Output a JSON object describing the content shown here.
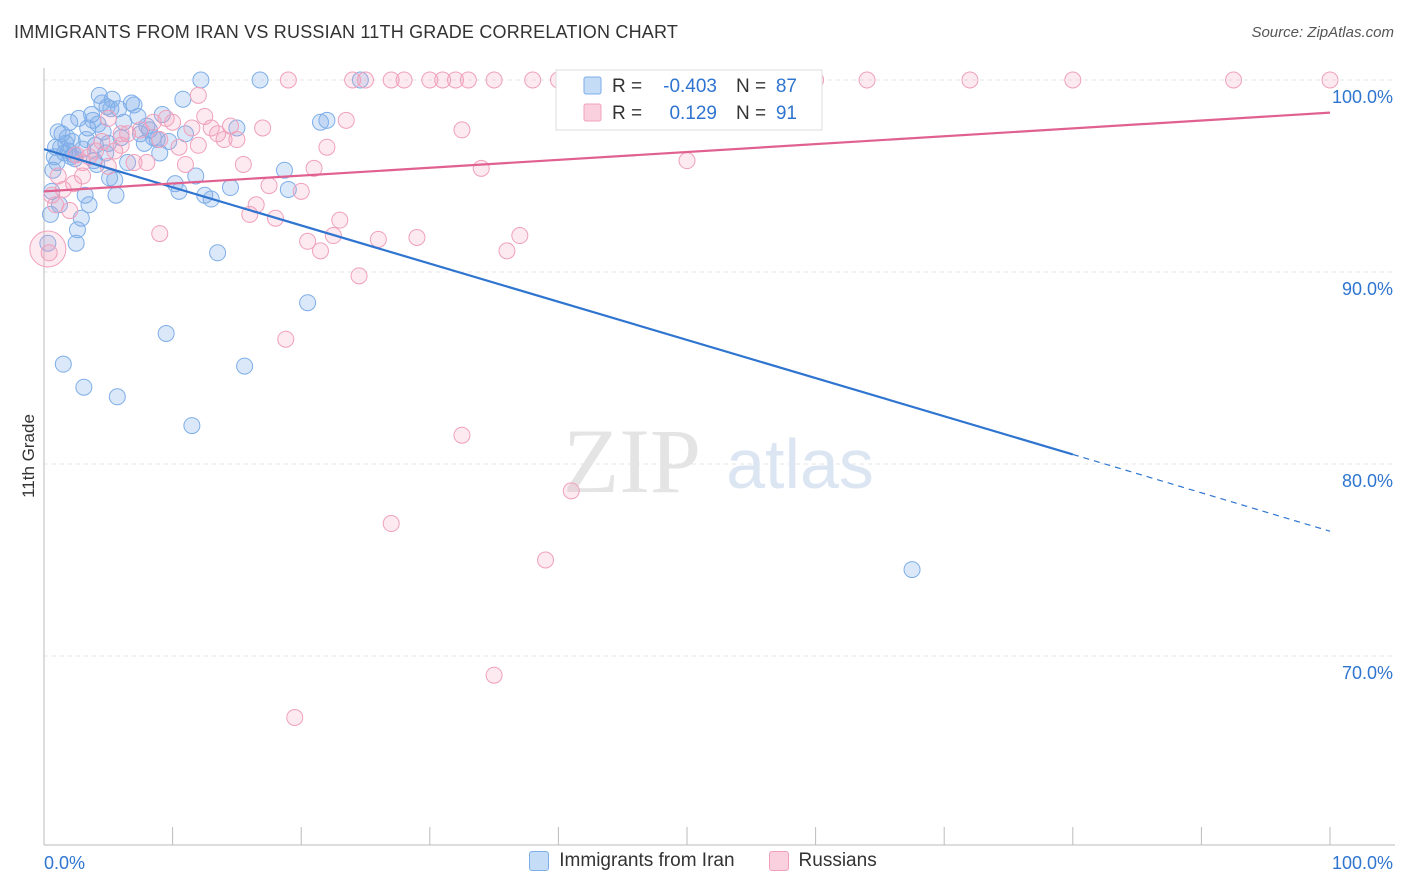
{
  "title": "IMMIGRANTS FROM IRAN VS RUSSIAN 11TH GRADE CORRELATION CHART",
  "source": "Source: ZipAtlas.com",
  "watermark": {
    "zip": "ZIP",
    "atlas": "atlas"
  },
  "chart_data": {
    "type": "scatter",
    "xlabel": "",
    "ylabel": "11th Grade",
    "xlim": [
      0,
      100
    ],
    "ylim": [
      60,
      100
    ],
    "x_tick_labels": [
      "0.0%",
      "100.0%"
    ],
    "y_ticks": [
      100,
      90,
      80,
      70
    ],
    "y_tick_labels": [
      "100.0%",
      "90.0%",
      "80.0%",
      "70.0%"
    ],
    "grid": true,
    "legend_position": "top-center",
    "legend": {
      "rows": [
        {
          "r_label": "R =",
          "r_value": "-0.403",
          "n_label": "N =",
          "n_value": "87"
        },
        {
          "r_label": "R =",
          "r_value": "0.129",
          "n_label": "N =",
          "n_value": "91"
        }
      ]
    },
    "series": [
      {
        "name": "Immigrants from Iran",
        "color": "#7eaee8",
        "line_color": "#2f75d0",
        "trend": {
          "x0": 0,
          "y0": 96.4,
          "x1": 80,
          "y1": 80.5,
          "dashed_to_x": 100,
          "dashed_to_y": 76.5
        },
        "points": [
          [
            0.3,
            91.5
          ],
          [
            0.5,
            93.0
          ],
          [
            0.6,
            94.2
          ],
          [
            0.7,
            95.3
          ],
          [
            0.8,
            96.0
          ],
          [
            1.0,
            95.7
          ],
          [
            1.2,
            93.5
          ],
          [
            1.3,
            96.5
          ],
          [
            1.4,
            97.2
          ],
          [
            1.6,
            96.2
          ],
          [
            1.8,
            97.0
          ],
          [
            1.9,
            96.3
          ],
          [
            2.0,
            97.8
          ],
          [
            2.2,
            96.8
          ],
          [
            2.4,
            95.9
          ],
          [
            2.5,
            91.5
          ],
          [
            2.6,
            92.2
          ],
          [
            2.7,
            98.0
          ],
          [
            2.9,
            92.8
          ],
          [
            3.0,
            96.4
          ],
          [
            3.2,
            94.0
          ],
          [
            3.4,
            97.5
          ],
          [
            3.5,
            93.5
          ],
          [
            3.7,
            98.2
          ],
          [
            3.9,
            95.8
          ],
          [
            4.0,
            96.6
          ],
          [
            4.2,
            97.7
          ],
          [
            4.3,
            99.2
          ],
          [
            4.5,
            98.8
          ],
          [
            4.6,
            97.3
          ],
          [
            4.8,
            96.2
          ],
          [
            4.9,
            98.6
          ],
          [
            5.0,
            96.7
          ],
          [
            5.2,
            98.5
          ],
          [
            5.3,
            99.0
          ],
          [
            5.5,
            94.8
          ],
          [
            5.6,
            94.0
          ],
          [
            5.8,
            98.5
          ],
          [
            6.0,
            97.0
          ],
          [
            6.5,
            95.7
          ],
          [
            6.8,
            98.8
          ],
          [
            7.0,
            98.7
          ],
          [
            7.5,
            97.2
          ],
          [
            7.8,
            96.7
          ],
          [
            8.2,
            97.4
          ],
          [
            8.5,
            97.0
          ],
          [
            8.8,
            96.9
          ],
          [
            9.2,
            98.2
          ],
          [
            9.7,
            96.8
          ],
          [
            10.2,
            94.6
          ],
          [
            10.5,
            94.2
          ],
          [
            11.0,
            97.2
          ],
          [
            11.8,
            95.0
          ],
          [
            12.5,
            94.0
          ],
          [
            13.0,
            93.8
          ],
          [
            13.5,
            91.0
          ],
          [
            14.5,
            94.4
          ],
          [
            15.0,
            97.5
          ],
          [
            16.8,
            100.0
          ],
          [
            18.7,
            95.3
          ],
          [
            19.0,
            94.3
          ],
          [
            20.5,
            88.4
          ],
          [
            21.5,
            97.8
          ],
          [
            22.0,
            97.9
          ],
          [
            1.5,
            85.2
          ],
          [
            3.1,
            84.0
          ],
          [
            5.7,
            83.5
          ],
          [
            9.5,
            86.8
          ],
          [
            11.5,
            82.0
          ],
          [
            15.6,
            85.1
          ],
          [
            0.9,
            96.5
          ],
          [
            1.1,
            97.3
          ],
          [
            2.1,
            96.0
          ],
          [
            3.3,
            96.9
          ],
          [
            4.1,
            95.6
          ],
          [
            6.2,
            97.8
          ],
          [
            7.3,
            98.1
          ],
          [
            10.8,
            99.0
          ],
          [
            12.2,
            100.0
          ],
          [
            24.6,
            100.0
          ],
          [
            3.8,
            97.9
          ],
          [
            2.3,
            96.1
          ],
          [
            5.1,
            94.9
          ],
          [
            8.0,
            97.6
          ],
          [
            67.5,
            74.5
          ],
          [
            1.7,
            96.7
          ],
          [
            9.0,
            96.2
          ]
        ]
      },
      {
        "name": "Russians",
        "color": "#f0a0bc",
        "line_color": "#e06090",
        "trend": {
          "x0": 0,
          "y0": 94.2,
          "x1": 100,
          "y1": 98.3
        },
        "points": [
          [
            0.4,
            91.0
          ],
          [
            0.6,
            94.0
          ],
          [
            0.9,
            93.5
          ],
          [
            1.1,
            95.0
          ],
          [
            1.5,
            94.3
          ],
          [
            2.0,
            93.2
          ],
          [
            2.5,
            96.1
          ],
          [
            3.0,
            95.7
          ],
          [
            3.5,
            96.0
          ],
          [
            4.0,
            96.3
          ],
          [
            4.5,
            96.8
          ],
          [
            5.0,
            95.5
          ],
          [
            5.5,
            96.3
          ],
          [
            6.0,
            96.6
          ],
          [
            6.5,
            97.2
          ],
          [
            7.0,
            95.7
          ],
          [
            7.5,
            97.4
          ],
          [
            8.0,
            95.7
          ],
          [
            8.5,
            97.8
          ],
          [
            9.0,
            96.9
          ],
          [
            9.5,
            98.0
          ],
          [
            10.0,
            97.8
          ],
          [
            10.5,
            96.5
          ],
          [
            11.0,
            95.6
          ],
          [
            11.5,
            97.5
          ],
          [
            12.0,
            96.6
          ],
          [
            12.5,
            98.1
          ],
          [
            13.0,
            97.5
          ],
          [
            13.5,
            97.2
          ],
          [
            14.0,
            96.9
          ],
          [
            14.5,
            97.6
          ],
          [
            15.0,
            96.9
          ],
          [
            15.5,
            95.6
          ],
          [
            16.0,
            93.0
          ],
          [
            16.5,
            93.5
          ],
          [
            17.0,
            97.5
          ],
          [
            17.5,
            94.5
          ],
          [
            18.0,
            92.8
          ],
          [
            19.0,
            100.0
          ],
          [
            20.0,
            94.2
          ],
          [
            20.5,
            91.6
          ],
          [
            21.0,
            95.4
          ],
          [
            21.5,
            91.1
          ],
          [
            22.0,
            96.5
          ],
          [
            22.5,
            91.9
          ],
          [
            23.0,
            92.7
          ],
          [
            23.5,
            97.9
          ],
          [
            24.0,
            100.0
          ],
          [
            24.5,
            89.8
          ],
          [
            25.0,
            100.0
          ],
          [
            26.0,
            91.7
          ],
          [
            27.0,
            100.0
          ],
          [
            28.0,
            100.0
          ],
          [
            29.0,
            91.8
          ],
          [
            30.0,
            100.0
          ],
          [
            31.0,
            100.0
          ],
          [
            32.0,
            100.0
          ],
          [
            32.5,
            97.4
          ],
          [
            33.0,
            100.0
          ],
          [
            34.0,
            95.4
          ],
          [
            35.0,
            100.0
          ],
          [
            36.0,
            91.1
          ],
          [
            37.0,
            91.9
          ],
          [
            38.0,
            100.0
          ],
          [
            40.0,
            100.0
          ],
          [
            42.0,
            100.0
          ],
          [
            45.0,
            100.0
          ],
          [
            47.0,
            100.0
          ],
          [
            50.0,
            100.0
          ],
          [
            52.0,
            100.0
          ],
          [
            56.0,
            100.0
          ],
          [
            60.0,
            100.0
          ],
          [
            64.0,
            100.0
          ],
          [
            72.0,
            100.0
          ],
          [
            80.0,
            100.0
          ],
          [
            92.5,
            100.0
          ],
          [
            100.0,
            100.0
          ],
          [
            50.0,
            95.8
          ],
          [
            9.0,
            92.0
          ],
          [
            12.0,
            99.2
          ],
          [
            18.8,
            86.5
          ],
          [
            32.5,
            81.5
          ],
          [
            41.0,
            78.6
          ],
          [
            27.0,
            76.9
          ],
          [
            39.0,
            75.0
          ],
          [
            35.0,
            69.0
          ],
          [
            19.5,
            66.8
          ],
          [
            5.0,
            98.0
          ],
          [
            6.0,
            97.2
          ],
          [
            3.0,
            95.0
          ],
          [
            2.3,
            94.6
          ]
        ]
      }
    ]
  }
}
